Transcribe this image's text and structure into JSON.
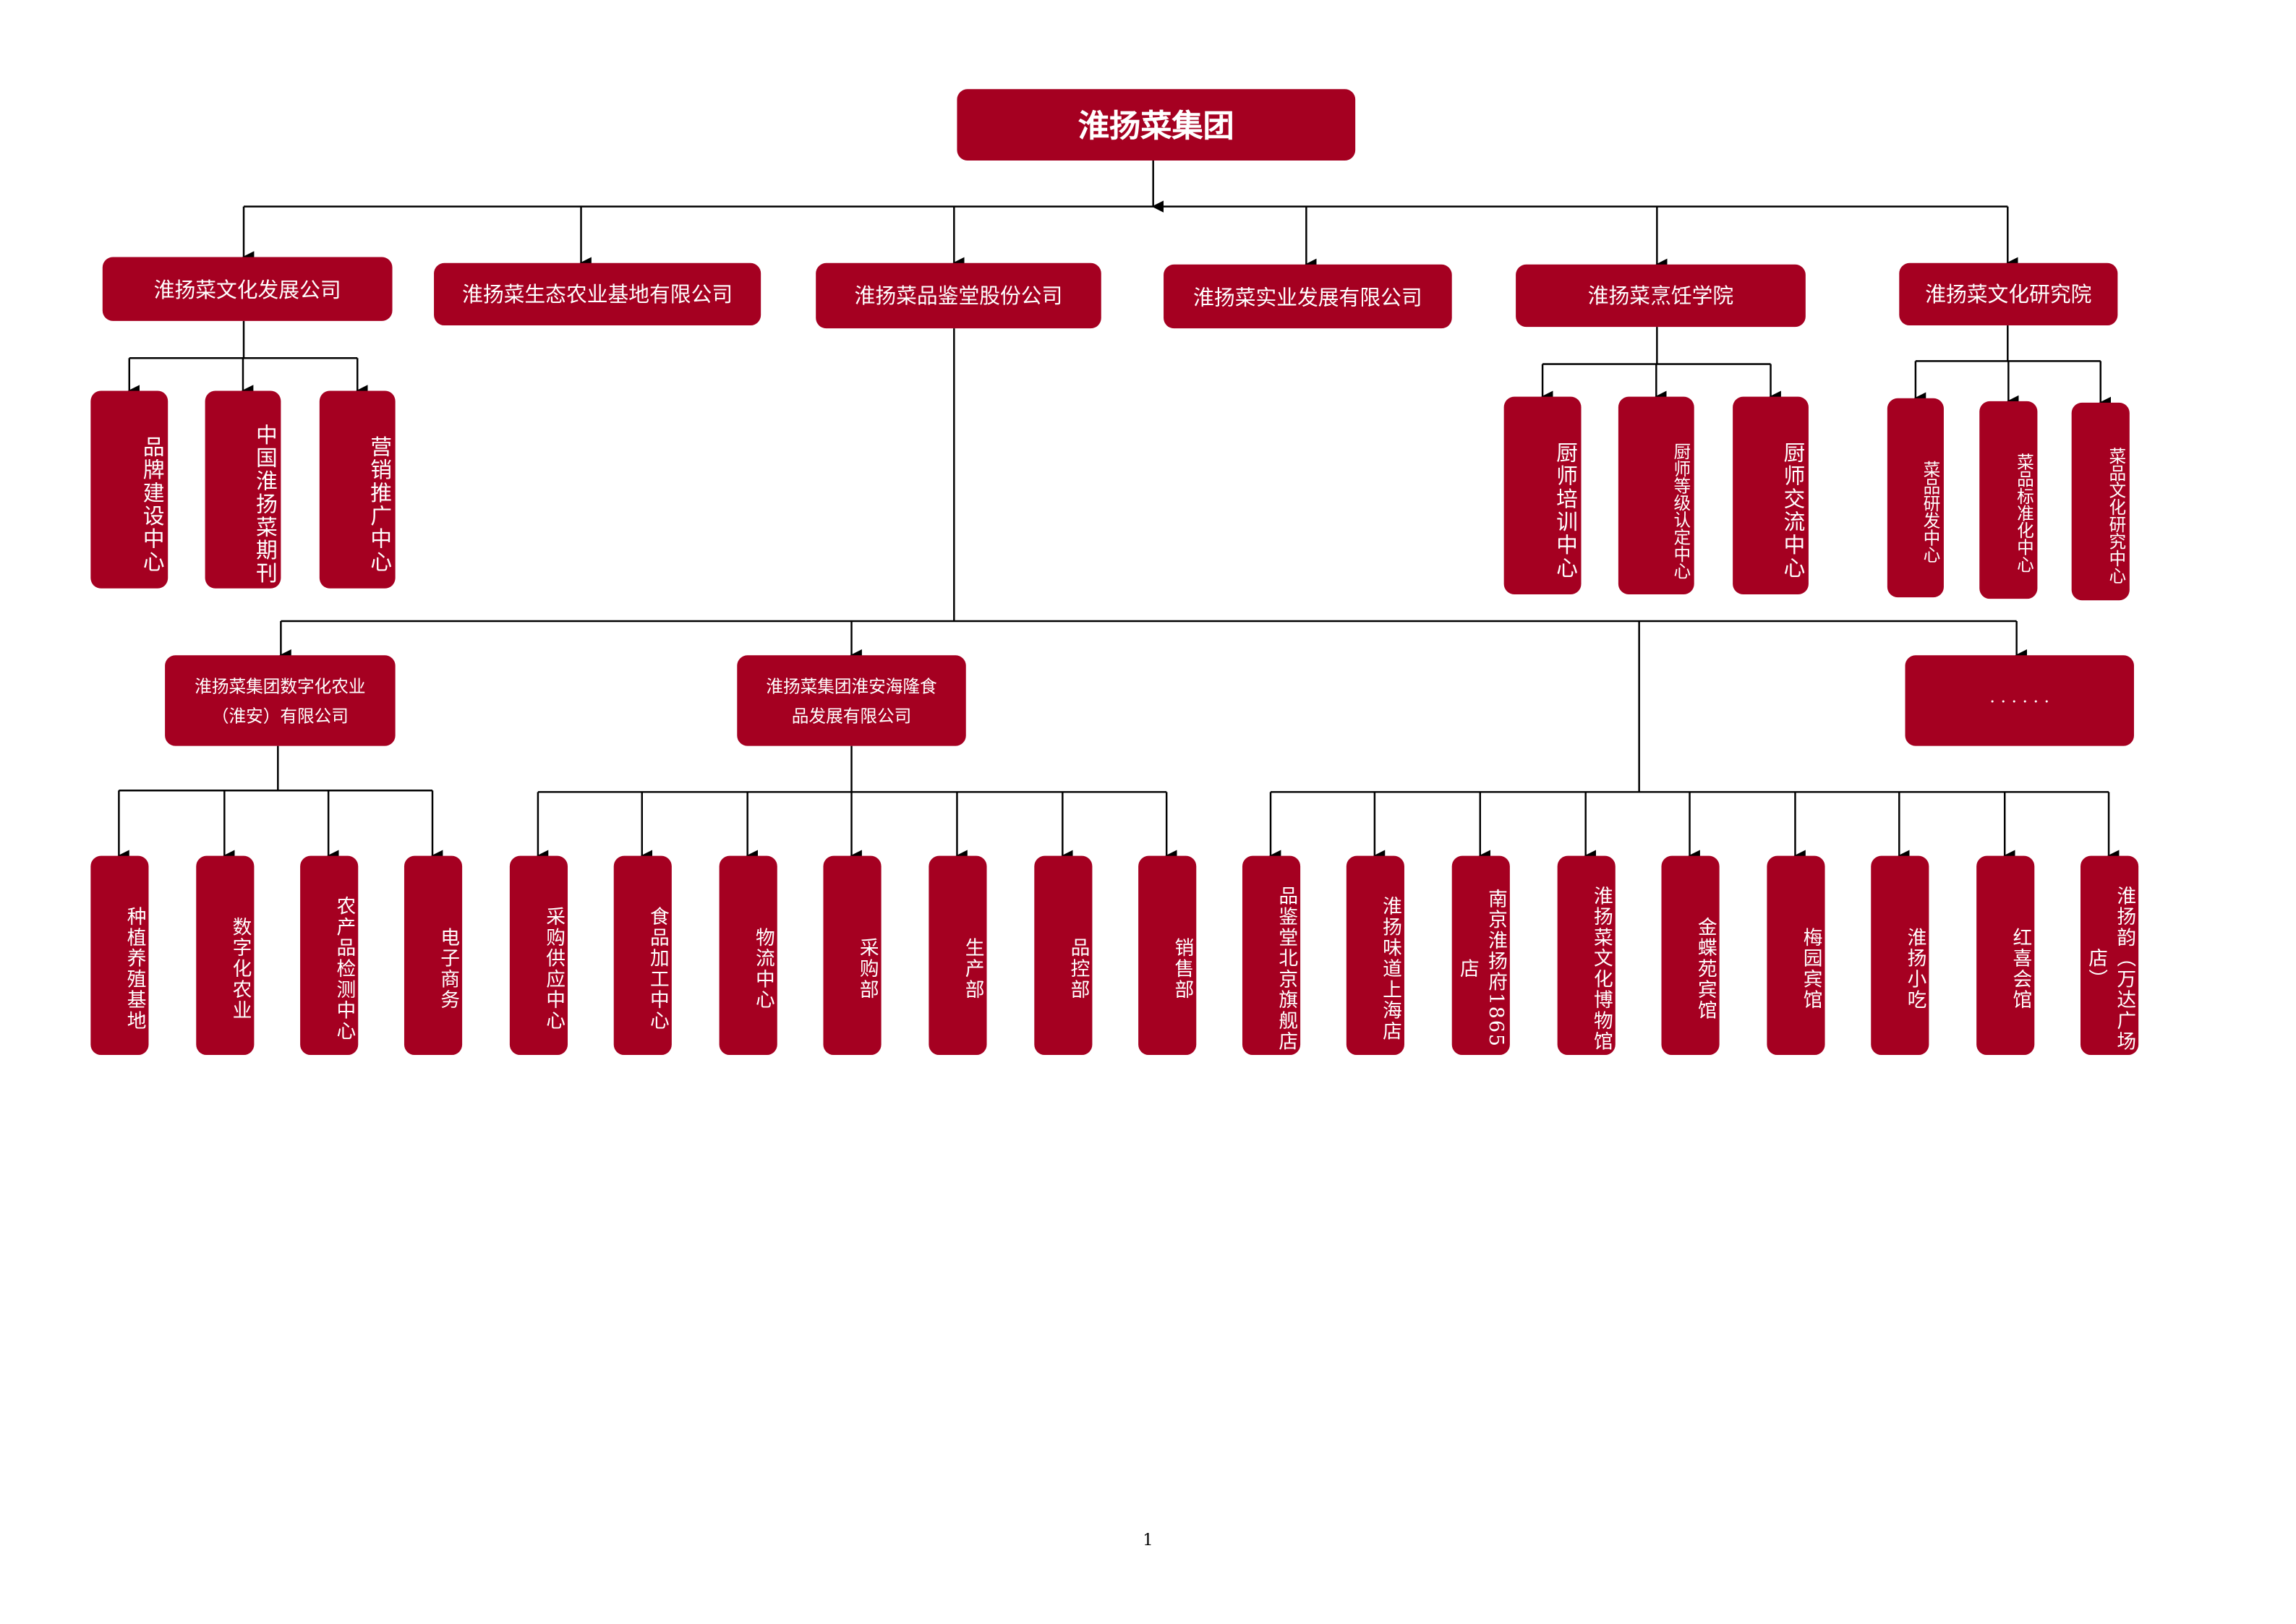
{
  "root": "淮扬菜集团",
  "level1": [
    {
      "label": "淮扬菜文化发展公司",
      "children": [
        "品牌建设中心",
        "中国淮扬菜期刊",
        "营销推广中心"
      ]
    },
    {
      "label": "淮扬菜生态农业基地有限公司",
      "children": []
    },
    {
      "label": "淮扬菜品鉴堂股份公司",
      "children": []
    },
    {
      "label": "淮扬菜实业发展有限公司",
      "children": []
    },
    {
      "label": "淮扬菜烹饪学院",
      "children": [
        "厨师培训中心",
        "厨师等级认定中心",
        "厨师交流中心"
      ]
    },
    {
      "label": "淮扬菜文化研究院",
      "children": [
        "菜品研发中心",
        "菜品标准化中心",
        "菜品文化研究中心"
      ]
    }
  ],
  "level3": [
    {
      "lines": [
        "淮扬菜集团数字化农业",
        "（淮安）有限公司"
      ],
      "children": [
        "种植养殖基地",
        "数字化农业",
        "农产品检测中心",
        "电子商务"
      ]
    },
    {
      "lines": [
        "淮扬菜集团淮安海隆食",
        "品发展有限公司"
      ],
      "children": [
        "采购供应中心",
        "食品加工中心",
        "物流中心",
        "采购部",
        "生产部",
        "品控部",
        "销售部"
      ]
    },
    {
      "lines": [
        "· · · · · ·"
      ],
      "children": []
    }
  ],
  "restaurants": [
    "品鉴堂北京旗舰店",
    "淮扬味道上海店",
    "南京淮扬府1865店",
    "淮扬菜文化博物馆",
    "金蝶苑宾馆",
    "梅园宾馆",
    "淮扬小吃",
    "红喜会馆",
    "淮扬韵（万达广场店）"
  ],
  "page_number": "1",
  "colors": {
    "box": "#a50021",
    "text": "#ffffff",
    "line": "#000000"
  }
}
